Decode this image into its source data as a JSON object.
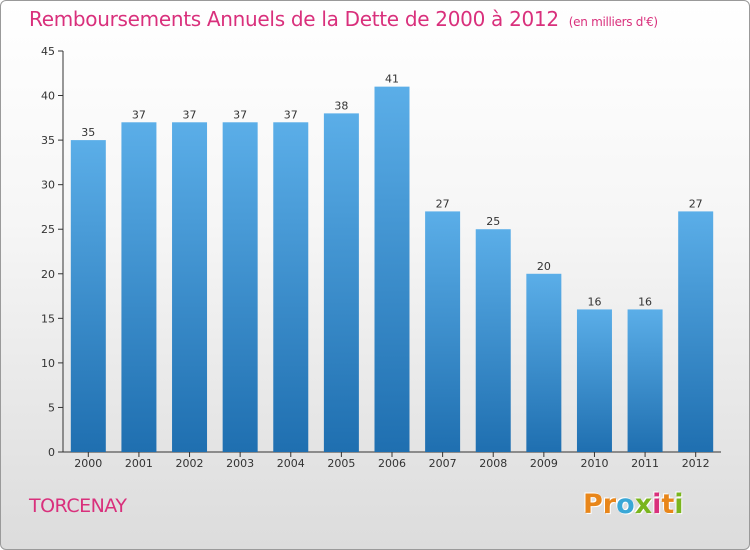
{
  "header": {
    "title": "Remboursements Annuels de la Dette de 2000 à 2012",
    "unit": "(en milliers d'€)"
  },
  "footer": {
    "commune": "TORCENAY",
    "brand_letters": [
      "P",
      "r",
      "o",
      "x",
      "i",
      "t",
      "i"
    ]
  },
  "colors": {
    "title": "#d9307c",
    "bar_top": "#5baee8",
    "bar_bottom": "#1f6fb0",
    "axis": "#333333",
    "brand": [
      "#e8861a",
      "#e8861a",
      "#3aa7d6",
      "#7ab51d",
      "#d9307c",
      "#e8861a",
      "#7ab51d"
    ]
  },
  "chart_data": {
    "type": "bar",
    "title": "Remboursements Annuels de la Dette de 2000 à 2012",
    "subtitle": "(en milliers d'€)",
    "xlabel": "",
    "ylabel": "",
    "ylim": [
      0,
      45
    ],
    "yticks": [
      0,
      5,
      10,
      15,
      20,
      25,
      30,
      35,
      40,
      45
    ],
    "grid": false,
    "categories": [
      "2000",
      "2001",
      "2002",
      "2003",
      "2004",
      "2005",
      "2006",
      "2007",
      "2008",
      "2009",
      "2010",
      "2011",
      "2012"
    ],
    "values": [
      35,
      37,
      37,
      37,
      37,
      38,
      41,
      27,
      25,
      20,
      16,
      16,
      27
    ]
  }
}
